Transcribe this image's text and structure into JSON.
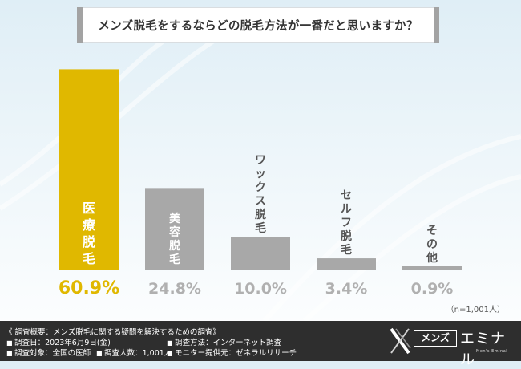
{
  "header": {
    "title": "メンズ脱毛をするならどの脱毛方法が一番だと思いますか？"
  },
  "chart_data": {
    "type": "bar",
    "categories": [
      "医療脱毛",
      "美容脱毛",
      "ワックス脱毛",
      "セルフ脱毛",
      "その他"
    ],
    "values": [
      60.9,
      24.8,
      10.0,
      3.4,
      0.9
    ],
    "value_labels": [
      "60.9%",
      "24.8%",
      "10.0%",
      "3.4%",
      "0.9%"
    ],
    "label_orientation": "vertical",
    "highlight_index": 0,
    "colors": {
      "highlight": "#e0b800",
      "bar": "#a8a8a8",
      "highlight_text": "#e0b800",
      "value_text": "#b0b0b0"
    },
    "ylim": [
      0,
      61
    ],
    "grid": false
  },
  "note": "（n=1,001人）",
  "footer": {
    "survey_title": "《 調査概要：メンズ脱毛に関する疑問を解決するための調査》",
    "items": [
      "調査日：2023年6月9日(金)",
      "調査方法：インターネット調査",
      "調査対象：全国の医師",
      "調査人数：1,001人",
      "モニター提供元：ゼネラルリサーチ"
    ],
    "logo": {
      "boxed": "メンズ",
      "text": "エミナル",
      "sub": "Men's Eminal",
      "icon": "eminal-x-logo-icon"
    }
  }
}
